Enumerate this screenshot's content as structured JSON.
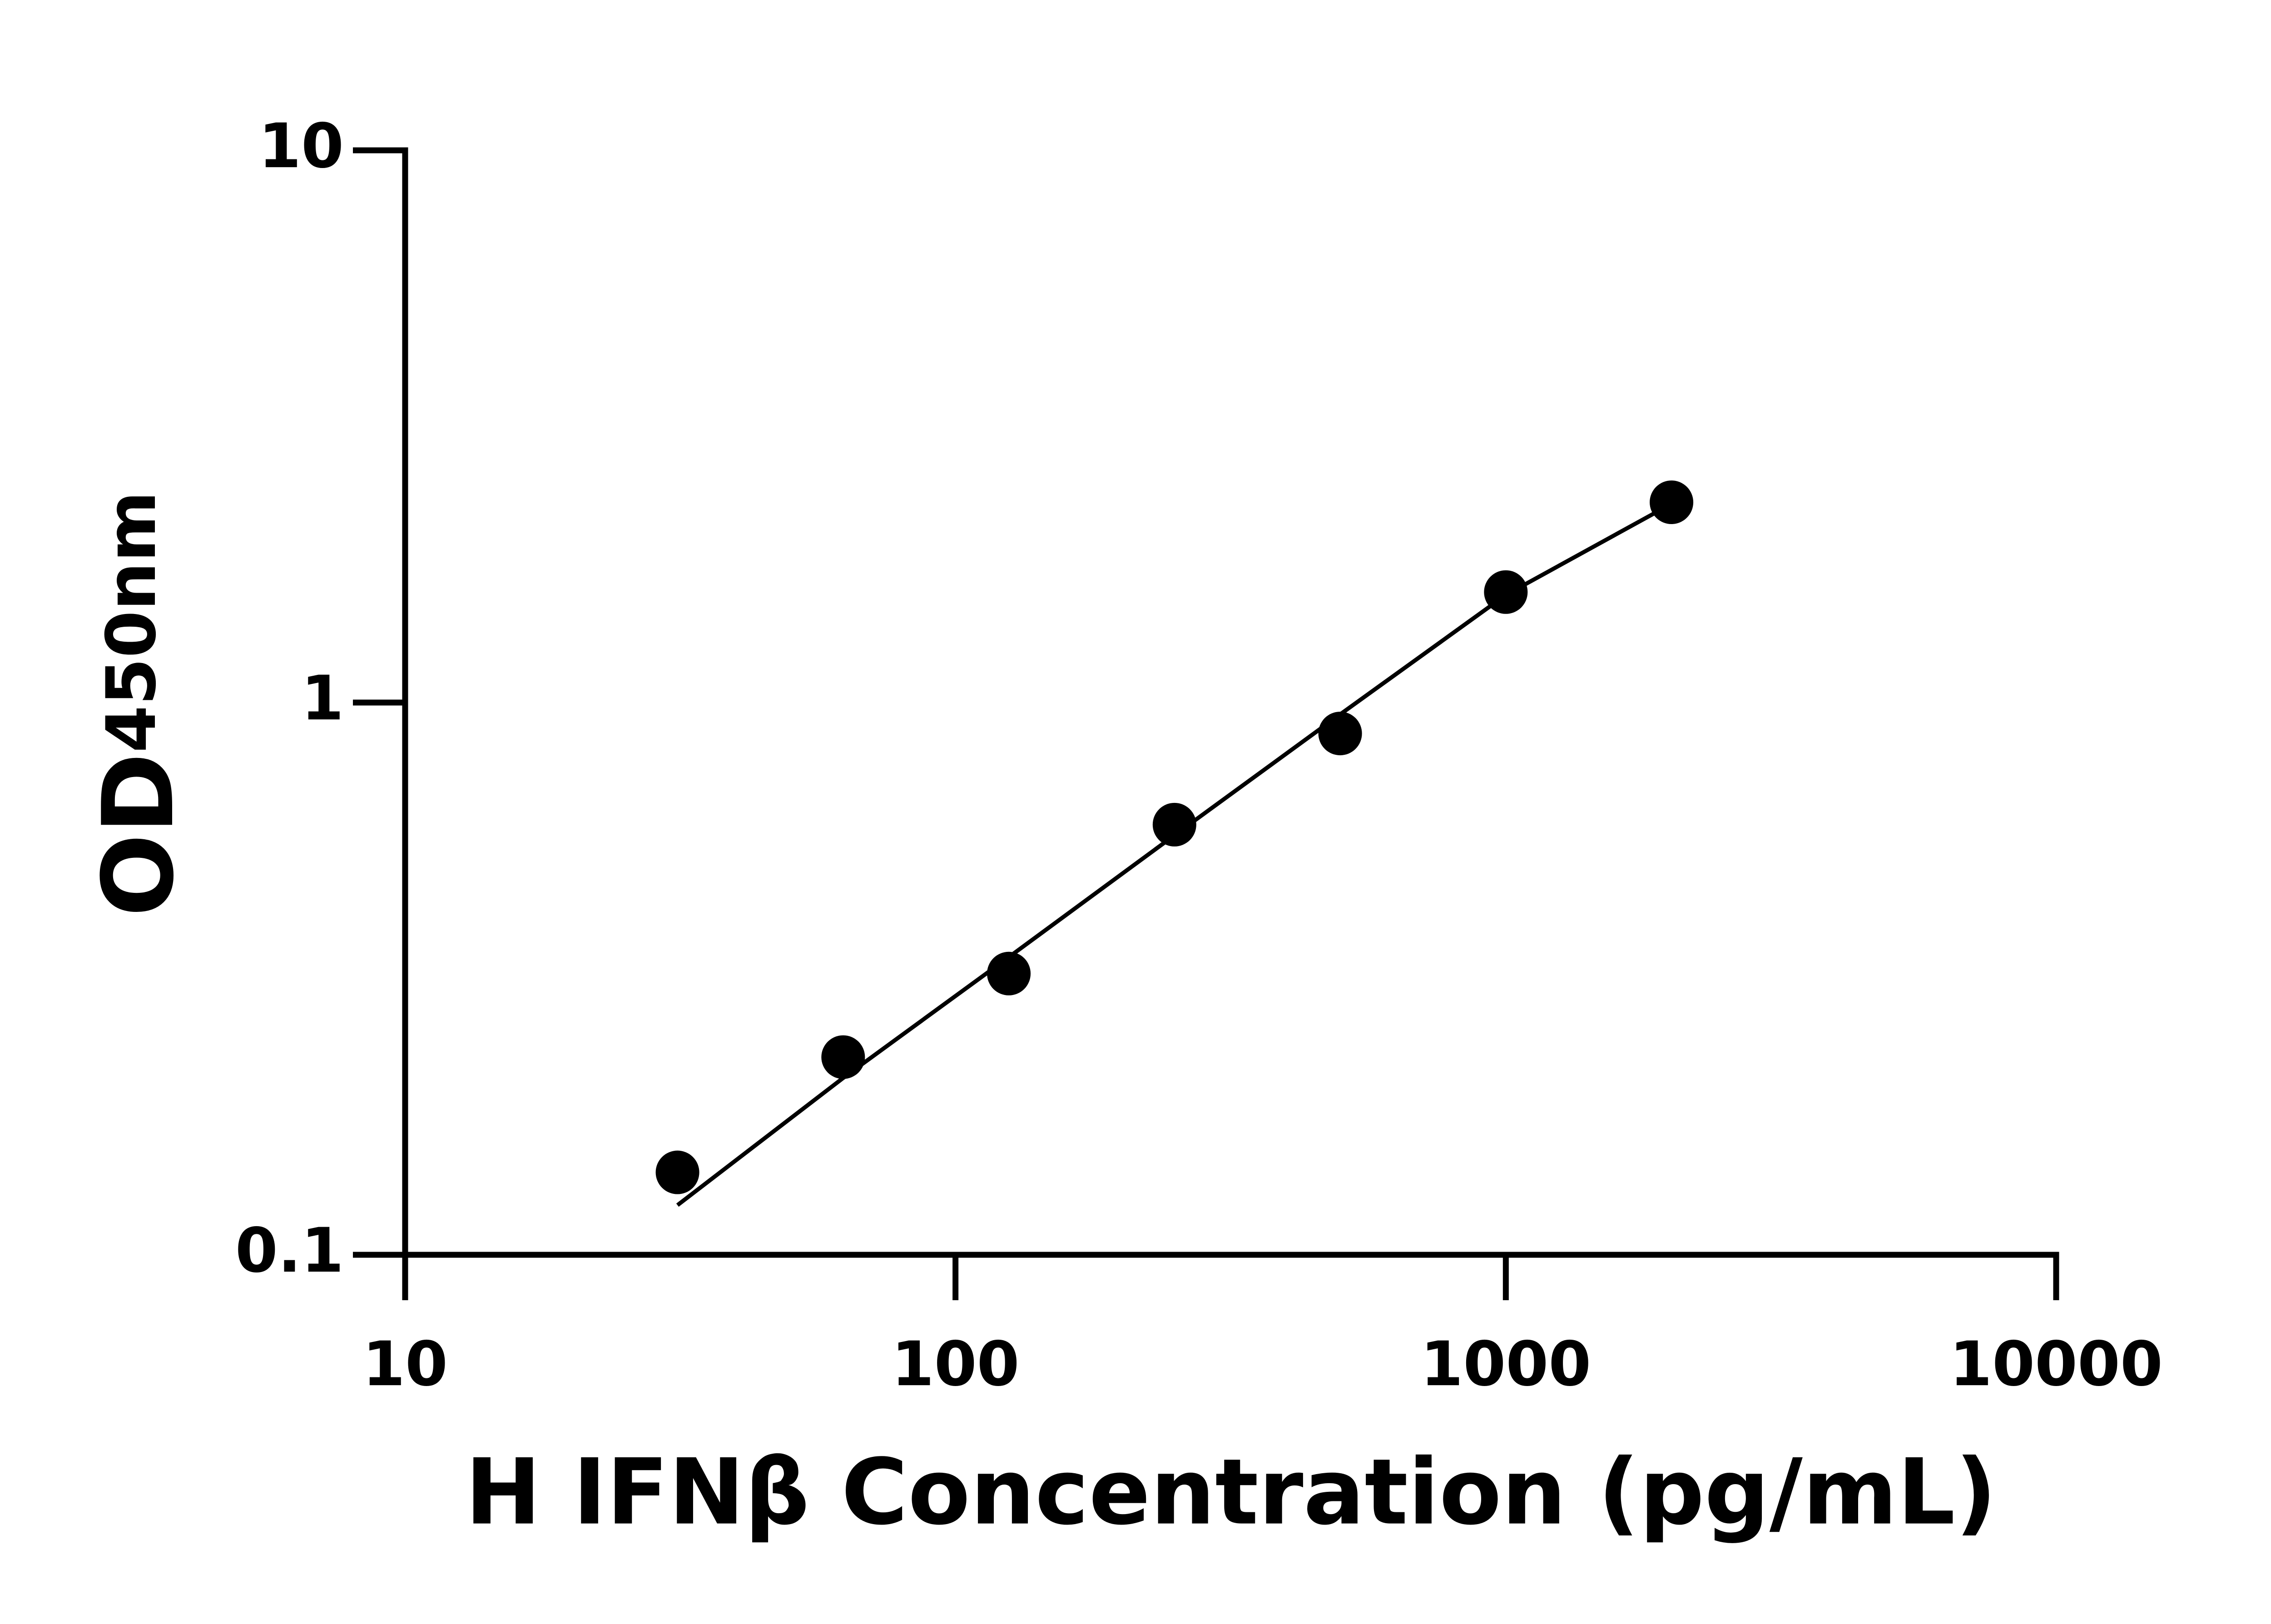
{
  "chart_data": {
    "type": "scatter",
    "x_label": "H IFNβ Concentration (pg/mL)",
    "y_label": "OD",
    "y_label_sub": "450nm",
    "xscale": "log",
    "yscale": "log",
    "xlim": [
      10,
      10000
    ],
    "ylim": [
      0.1,
      10
    ],
    "xticks": [
      10,
      100,
      1000,
      10000
    ],
    "yticks": [
      0.1,
      1,
      10
    ],
    "grid": false,
    "series": [
      {
        "mode": "markers",
        "color": "#000000",
        "x": [
          31.25,
          62.5,
          125,
          250,
          500,
          1000,
          2000
        ],
        "values": [
          0.141,
          0.228,
          0.323,
          0.601,
          0.879,
          1.585,
          2.305
        ]
      },
      {
        "mode": "line",
        "color": "#000000",
        "x": [
          31.25,
          62.5,
          125,
          250,
          500,
          1000,
          2000
        ],
        "values": [
          0.123,
          0.209,
          0.346,
          0.575,
          0.952,
          1.566,
          2.29
        ]
      }
    ]
  }
}
